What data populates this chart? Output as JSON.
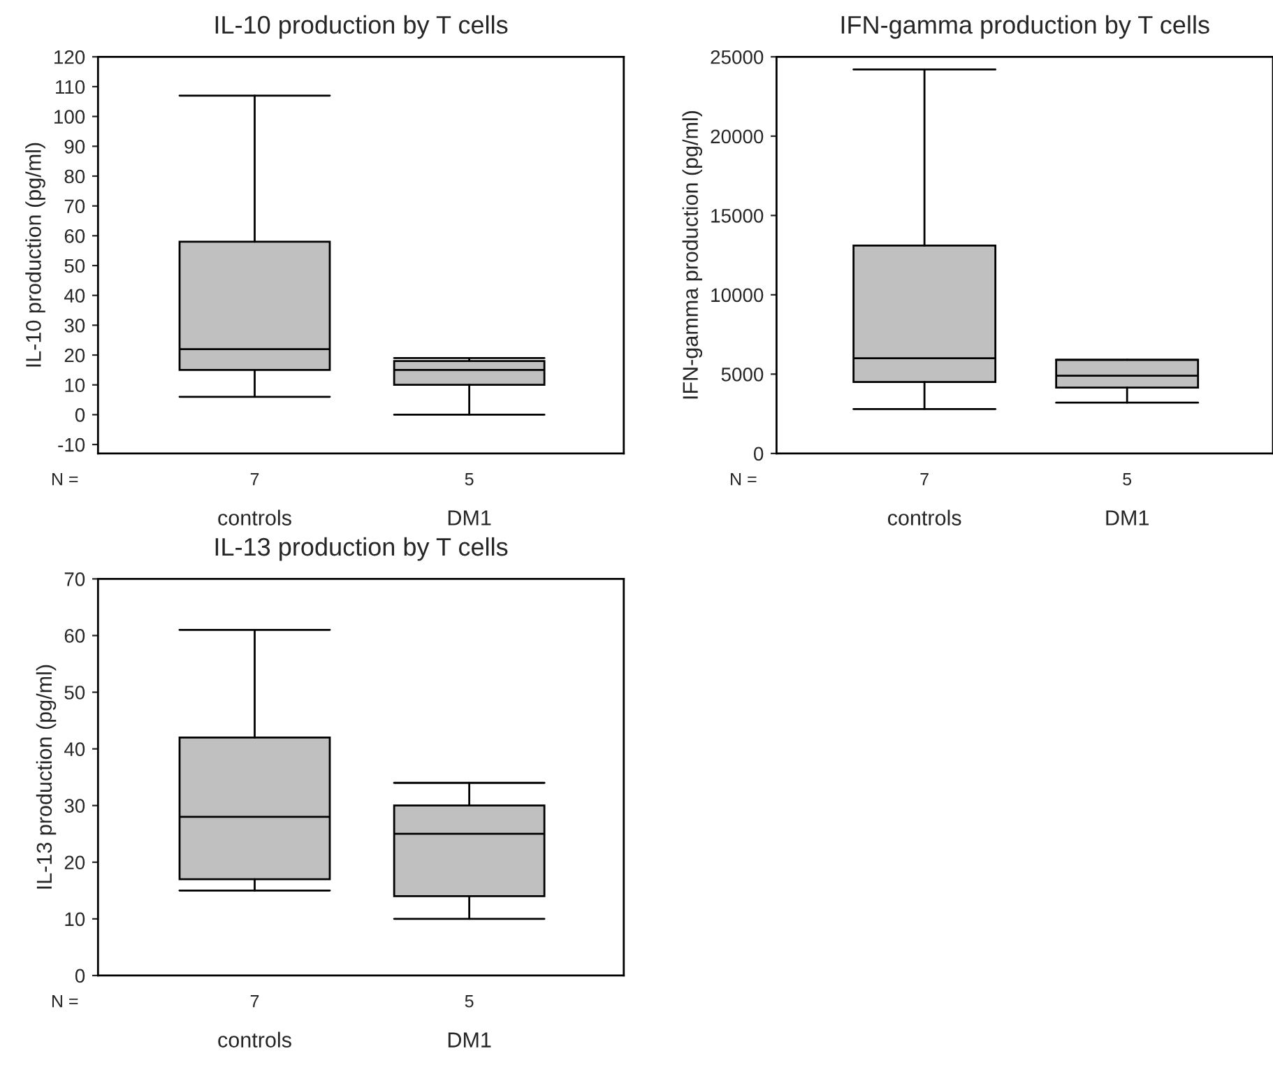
{
  "chart_data": [
    {
      "type": "box",
      "title": "IL-10 production by T cells",
      "ylabel": "IL-10 production (pg/ml)",
      "categories": [
        "controls",
        "DM1"
      ],
      "color": "#c0c0c0",
      "boxes": [
        {
          "low": 6,
          "q1": 15,
          "median": 22,
          "q3": 58,
          "high": 107
        },
        {
          "low": 0,
          "q1": 10,
          "median": 15,
          "q3": 18,
          "high": 19
        }
      ],
      "ylim": [
        -13,
        120
      ],
      "yticks": [
        -10,
        0,
        10,
        20,
        30,
        40,
        50,
        60,
        70,
        80,
        90,
        100,
        110,
        120
      ],
      "annotations": [
        "N =",
        "7",
        "5"
      ]
    },
    {
      "type": "box",
      "title": "IFN-gamma production by T cells",
      "ylabel": "IFN-gamma production (pg/ml)",
      "categories": [
        "controls",
        "DM1"
      ],
      "color": "#c0c0c0",
      "boxes": [
        {
          "low": 2800,
          "q1": 4500,
          "median": 6000,
          "q3": 13100,
          "high": 24200
        },
        {
          "low": 3200,
          "q1": 4150,
          "median": 4900,
          "q3": 5900,
          "high": 5900
        }
      ],
      "ylim": [
        0,
        25000
      ],
      "yticks": [
        0,
        5000,
        10000,
        15000,
        20000,
        25000
      ],
      "annotations": [
        "N =",
        "7",
        "5"
      ]
    },
    {
      "type": "box",
      "title": "IL-13 production by T cells",
      "ylabel": "IL-13 production (pg/ml)",
      "categories": [
        "controls",
        "DM1"
      ],
      "color": "#c0c0c0",
      "boxes": [
        {
          "low": 15,
          "q1": 17,
          "median": 28,
          "q3": 42,
          "high": 61
        },
        {
          "low": 10,
          "q1": 14,
          "median": 25,
          "q3": 30,
          "high": 34
        }
      ],
      "ylim": [
        0,
        70
      ],
      "yticks": [
        0,
        10,
        20,
        30,
        40,
        50,
        60,
        70
      ],
      "annotations": [
        "N =",
        "7",
        "5"
      ]
    }
  ]
}
